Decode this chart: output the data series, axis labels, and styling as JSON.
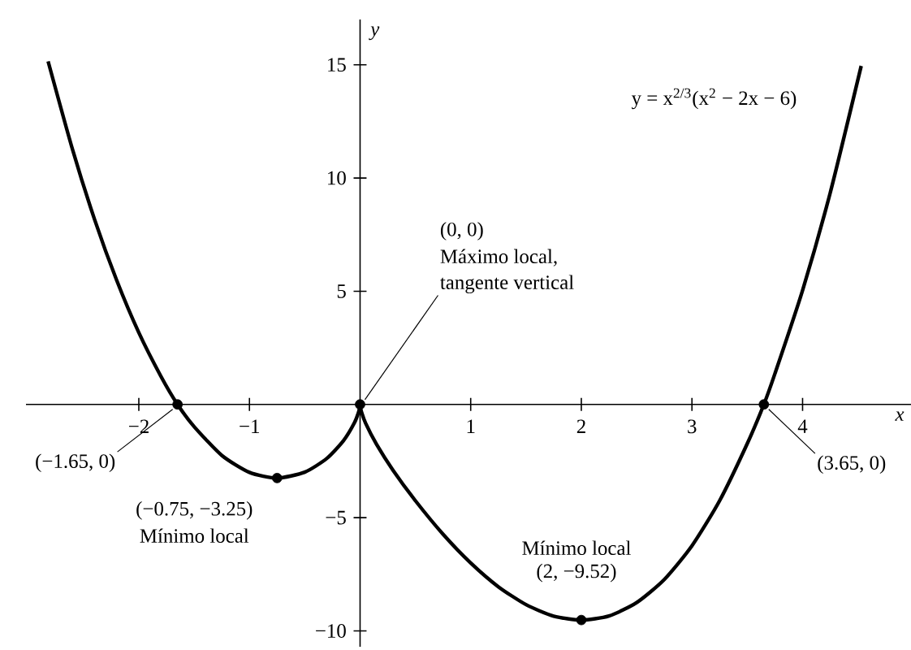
{
  "chart_data": {
    "type": "line",
    "xlabel": "x",
    "ylabel": "y",
    "xlim": [
      -3.02,
      4.98
    ],
    "ylim": [
      -10.7,
      17
    ],
    "xticks": [
      {
        "value": -2,
        "label": "−2"
      },
      {
        "value": -1,
        "label": "−1"
      },
      1,
      2,
      3,
      4
    ],
    "yticks": [
      {
        "value": -10,
        "label": "−10"
      },
      {
        "value": -5,
        "label": "−5"
      },
      5,
      10,
      15
    ],
    "series": [
      {
        "name": "y = x$^{2/3}$(x$^{2}$ − 2x − 6)",
        "color": "#000000",
        "x": [
          -2.82,
          -2.6,
          -2.4,
          -2.2,
          -2.0,
          -1.8,
          -1.65,
          -1.5,
          -1.25,
          -1.0,
          -0.75,
          -0.5,
          -0.3,
          -0.15,
          -0.05,
          -0.01,
          0,
          0.01,
          0.05,
          0.15,
          0.3,
          0.5,
          0.75,
          1.0,
          1.25,
          1.5,
          1.75,
          2.0,
          2.25,
          2.5,
          2.75,
          3.0,
          3.25,
          3.5,
          3.65,
          3.75,
          4.0,
          4.25,
          4.53
        ],
        "values": [
          15.15,
          11.27,
          8.17,
          5.48,
          3.17,
          1.24,
          0,
          -0.98,
          -2.25,
          -3.0,
          -3.25,
          -2.99,
          -2.38,
          -1.6,
          -0.8,
          -0.28,
          0,
          -0.28,
          -0.83,
          -1.77,
          -2.92,
          -4.25,
          -5.73,
          -7.0,
          -8.05,
          -8.84,
          -9.35,
          -9.52,
          -9.34,
          -8.75,
          -7.73,
          -6.24,
          -4.25,
          -1.73,
          0,
          1.36,
          5.04,
          9.35,
          14.95
        ]
      },
      {
        "type": "scatter",
        "color": "#000000",
        "marker": "circle",
        "x": [
          -1.65,
          -0.75,
          0,
          2,
          3.65
        ],
        "values": [
          0,
          -3.25,
          0,
          -9.52,
          0
        ]
      }
    ],
    "annotations": [
      {
        "text": "(−1.65, 0)",
        "x": -1.65,
        "y": 0
      },
      {
        "text": "(−0.75, −3.25)",
        "x": -0.75,
        "y": -3.25
      },
      "Mínimo local",
      "(0, 0)",
      "Máximo local,",
      {
        "text": "tangente vertical",
        "x": 0,
        "y": 0
      },
      "Mínimo local",
      {
        "text": "(2, −9.52)",
        "x": 2,
        "y": -9.52
      },
      {
        "text": "(3.65, 0)",
        "x": 3.65,
        "y": 0
      }
    ]
  }
}
